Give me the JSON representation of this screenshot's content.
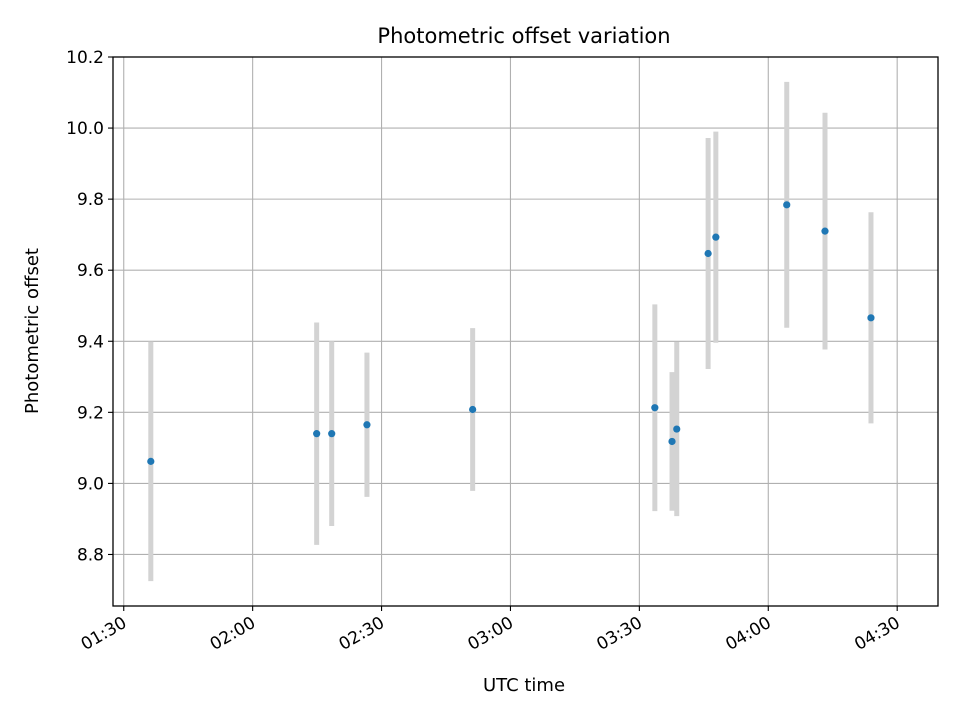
{
  "chart_data": {
    "type": "scatter",
    "title": "Photometric offset variation",
    "xlabel": "UTC time",
    "ylabel": "Photometric offset",
    "grid": true,
    "x_unit": "minutes after 00:00 UTC",
    "xlim": [
      87.5,
      279.5
    ],
    "ylim": [
      8.655,
      10.2
    ],
    "x_ticks": [
      {
        "value": 90,
        "label": "01:30"
      },
      {
        "value": 120,
        "label": "02:00"
      },
      {
        "value": 150,
        "label": "02:30"
      },
      {
        "value": 180,
        "label": "03:00"
      },
      {
        "value": 210,
        "label": "03:30"
      },
      {
        "value": 240,
        "label": "04:00"
      },
      {
        "value": 270,
        "label": "04:30"
      }
    ],
    "y_ticks": [
      {
        "value": 8.8,
        "label": "8.8"
      },
      {
        "value": 9.0,
        "label": "9.0"
      },
      {
        "value": 9.2,
        "label": "9.2"
      },
      {
        "value": 9.4,
        "label": "9.4"
      },
      {
        "value": 9.6,
        "label": "9.6"
      },
      {
        "value": 9.8,
        "label": "9.8"
      },
      {
        "value": 10.0,
        "label": "10.0"
      },
      {
        "value": 10.2,
        "label": "10.2"
      }
    ],
    "series": [
      {
        "name": "photometric offset",
        "color": "#1f77b4",
        "errorbar_color": "#d3d3d3",
        "points": [
          {
            "x": 96.3,
            "y": 9.062,
            "err": 0.337
          },
          {
            "x": 134.9,
            "y": 9.14,
            "err": 0.313
          },
          {
            "x": 138.4,
            "y": 9.14,
            "err": 0.26
          },
          {
            "x": 146.6,
            "y": 9.165,
            "err": 0.203
          },
          {
            "x": 171.2,
            "y": 9.208,
            "err": 0.229
          },
          {
            "x": 213.6,
            "y": 9.213,
            "err": 0.291
          },
          {
            "x": 217.6,
            "y": 9.118,
            "err": 0.195
          },
          {
            "x": 218.7,
            "y": 9.153,
            "err": 0.245
          },
          {
            "x": 226.0,
            "y": 9.647,
            "err": 0.325
          },
          {
            "x": 227.8,
            "y": 9.693,
            "err": 0.297
          },
          {
            "x": 244.3,
            "y": 9.784,
            "err": 0.346
          },
          {
            "x": 253.2,
            "y": 9.71,
            "err": 0.333
          },
          {
            "x": 263.9,
            "y": 9.466,
            "err": 0.297
          }
        ]
      }
    ]
  }
}
